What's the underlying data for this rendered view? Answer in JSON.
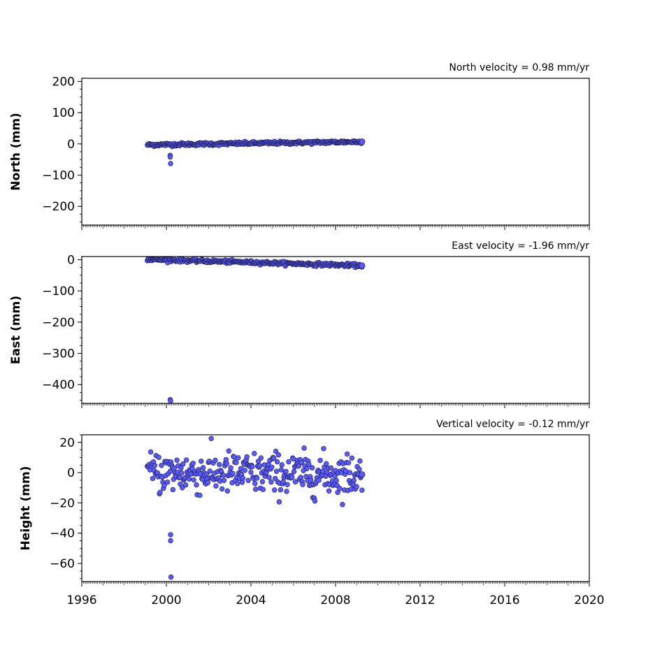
{
  "chart_data": [
    {
      "type": "scatter",
      "ylabel": "North (mm)",
      "annotation": "North velocity = 0.98 mm/yr",
      "xlim": [
        1996,
        2020
      ],
      "ylim": [
        -260,
        210
      ],
      "yticks": [
        200,
        100,
        0,
        -100,
        -200
      ],
      "ytick_labels": [
        "200",
        "100",
        "0",
        "−100",
        "−200"
      ],
      "x_tick_labels_shown": false,
      "series": {
        "trend": {
          "x_start": 1999.1,
          "y_start": -3.0,
          "velocity": 0.98,
          "noise": 2.5
        },
        "outliers": [
          {
            "x": 2000.18,
            "y": -37
          },
          {
            "x": 2000.18,
            "y": -42
          },
          {
            "x": 2000.2,
            "y": -63
          }
        ]
      }
    },
    {
      "type": "scatter",
      "ylabel": "East (mm)",
      "annotation": "East velocity = -1.96 mm/yr",
      "xlim": [
        1996,
        2020
      ],
      "ylim": [
        -460,
        10
      ],
      "yticks": [
        0,
        -100,
        -200,
        -300,
        -400
      ],
      "ytick_labels": [
        "0",
        "−100",
        "−200",
        "−300",
        "−400"
      ],
      "x_tick_labels_shown": false,
      "series": {
        "trend": {
          "x_start": 1999.1,
          "y_start": 1.0,
          "velocity": -1.96,
          "noise": 2.5
        },
        "outliers": [
          {
            "x": 2000.18,
            "y": -448
          },
          {
            "x": 2000.2,
            "y": -452
          }
        ]
      }
    },
    {
      "type": "scatter",
      "ylabel": "Height (mm)",
      "annotation": "Vertical velocity = -0.12 mm/yr",
      "xlim": [
        1996,
        2020
      ],
      "ylim": [
        -72,
        25
      ],
      "yticks": [
        20,
        0,
        -20,
        -40,
        -60
      ],
      "ytick_labels": [
        "20",
        "0",
        "−20",
        "−40",
        "−60"
      ],
      "x_tick_labels_shown": true,
      "xticks": [
        1996,
        2000,
        2004,
        2008,
        2012,
        2016,
        2020
      ],
      "xtick_labels": [
        "1996",
        "2000",
        "2004",
        "2008",
        "2012",
        "2016",
        "2020"
      ],
      "series": {
        "trend": {
          "x_start": 1999.1,
          "y_start": 0.0,
          "velocity": -0.12,
          "noise": 7.0
        },
        "outliers": [
          {
            "x": 2000.2,
            "y": -41
          },
          {
            "x": 2000.2,
            "y": -45
          },
          {
            "x": 2000.22,
            "y": -69
          }
        ]
      }
    }
  ],
  "time_span": {
    "start": 1999.1,
    "end": 2009.25
  },
  "colors": {
    "point_fill": "#5a5aff",
    "point_edge": "#1a1a44",
    "axis": "#000000"
  }
}
